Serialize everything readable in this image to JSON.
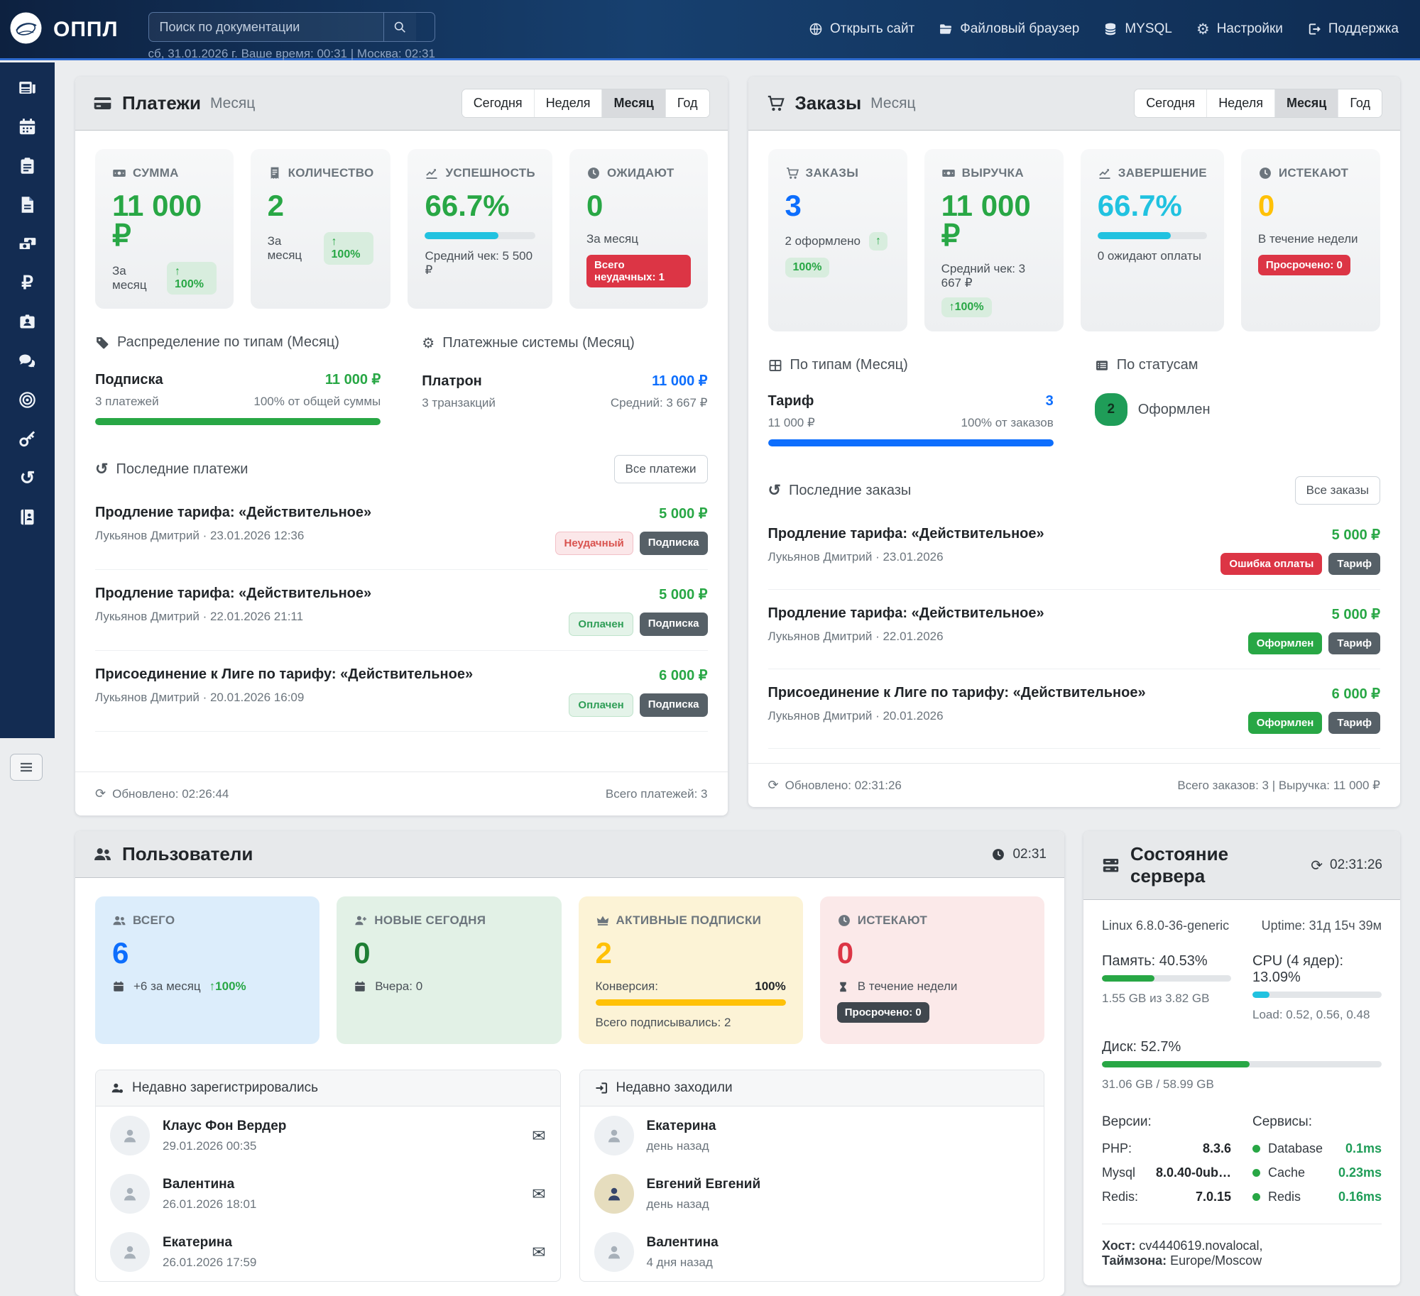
{
  "colors": {
    "accent_green": "#28a745",
    "accent_blue": "#0d6efd",
    "accent_cyan": "#21c2e0",
    "accent_amber": "#ffc107",
    "accent_red": "#dc3545",
    "navbar": "#17406f",
    "sidebar": "#132c52"
  },
  "icons": {
    "refresh": "⟳",
    "history": "↺",
    "gears": "⚙",
    "mail": "✉",
    "arrow_up": "↑",
    "ruble": "₽"
  },
  "topbar": {
    "brand": "ОППЛ",
    "search_placeholder": "Поиск по документации",
    "datetime": "сб, 31.01.2026 г. Ваше время: 00:31 | Москва: 02:31",
    "nav": [
      {
        "label": "Открыть сайт"
      },
      {
        "label": "Файловый браузер"
      },
      {
        "label": "MYSQL"
      },
      {
        "label": "Настройки"
      },
      {
        "label": "Поддержка"
      }
    ]
  },
  "sidebar": {
    "icons": [
      "news",
      "calendar",
      "tasks",
      "documents",
      "transactions",
      "finance",
      "staff",
      "messages",
      "targets",
      "access",
      "history",
      "directory"
    ]
  },
  "tabs": {
    "today": "Сегодня",
    "week": "Неделя",
    "month": "Месяц",
    "year": "Год"
  },
  "payments": {
    "title": "Платежи",
    "subtitle": "Месяц",
    "stats": [
      {
        "label": "СУММА",
        "value": "11 000 ₽",
        "foot": "За месяц",
        "badge": "↑ 100%"
      },
      {
        "label": "КОЛИЧЕСТВО",
        "value": "2",
        "foot": "За месяц",
        "badge": "↑ 100%"
      },
      {
        "label": "УСПЕШНОСТЬ",
        "value": "66.7%",
        "progress": 66.7,
        "foot": "Средний чек: 5 500 ₽"
      },
      {
        "label": "ОЖИДАЮТ",
        "value": "0",
        "foot": "За месяц",
        "alert": "Всего неудачных: 1"
      }
    ],
    "types": {
      "heading": "Распределение по типам (Месяц)",
      "name": "Подписка",
      "amount": "11 000 ₽",
      "count": "3 платежей",
      "share": "100% от общей суммы",
      "progress": 100
    },
    "systems": {
      "heading": "Платежные системы (Месяц)",
      "name": "Платрон",
      "amount": "11 000 ₽",
      "count": "3 транзакций",
      "avg": "Средний: 3 667 ₽"
    },
    "recent_title": "Последние платежи",
    "view_all": "Все платежи",
    "recent": [
      {
        "title": "Продление тарифа: «Действительное»",
        "meta": "Лукьянов Дмитрий · 23.01.2026 12:36",
        "amount": "5 000 ₽",
        "status": "Неудачный",
        "type": "Подписка"
      },
      {
        "title": "Продление тарифа: «Действительное»",
        "meta": "Лукьянов Дмитрий · 22.01.2026 21:11",
        "amount": "5 000 ₽",
        "status": "Оплачен",
        "type": "Подписка"
      },
      {
        "title": "Присоединение к Лиге по тарифу: «Действительное»",
        "meta": "Лукьянов Дмитрий · 20.01.2026 16:09",
        "amount": "6 000 ₽",
        "status": "Оплачен",
        "type": "Подписка"
      }
    ],
    "updated": "Обновлено: 02:26:44",
    "total": "Всего платежей: 3"
  },
  "orders": {
    "title": "Заказы",
    "subtitle": "Месяц",
    "stats": [
      {
        "label": "ЗАКАЗЫ",
        "value": "3",
        "foot": "2 оформлено",
        "arrow": "↑",
        "badge": "100%"
      },
      {
        "label": "ВЫРУЧКА",
        "value": "11 000 ₽",
        "foot": "Средний чек: 3 667 ₽",
        "badge": "↑100%"
      },
      {
        "label": "ЗАВЕРШЕНИЕ",
        "value": "66.7%",
        "progress": 66.7,
        "foot": "0 ожидают оплаты"
      },
      {
        "label": "ИСТЕКАЮТ",
        "value": "0",
        "foot": "В течение недели",
        "alert": "Просрочено: 0"
      }
    ],
    "types": {
      "heading": "По типам (Месяц)",
      "name": "Тариф",
      "count": "3",
      "amount": "11 000 ₽",
      "share": "100% от заказов",
      "progress": 100
    },
    "statuses": {
      "heading": "По статусам",
      "count": "2",
      "label": "Оформлен"
    },
    "recent_title": "Последние заказы",
    "view_all": "Все заказы",
    "recent": [
      {
        "title": "Продление тарифа: «Действительное»",
        "meta": "Лукьянов Дмитрий · 23.01.2026",
        "amount": "5 000 ₽",
        "status": "Ошибка оплаты",
        "type": "Тариф"
      },
      {
        "title": "Продление тарифа: «Действительное»",
        "meta": "Лукьянов Дмитрий · 22.01.2026",
        "amount": "5 000 ₽",
        "status": "Оформлен",
        "type": "Тариф"
      },
      {
        "title": "Присоединение к Лиге по тарифу: «Действительное»",
        "meta": "Лукьянов Дмитрий · 20.01.2026",
        "amount": "6 000 ₽",
        "status": "Оформлен",
        "type": "Тариф"
      }
    ],
    "updated": "Обновлено: 02:31:26",
    "total": "Всего заказов: 3 | Выручка: 11 000 ₽"
  },
  "users": {
    "title": "Пользователи",
    "time": "02:31",
    "stats": [
      {
        "label": "ВСЕГО",
        "value": "6",
        "foot": "+6 за месяц",
        "badge": "↑100%"
      },
      {
        "label": "НОВЫЕ СЕГОДНЯ",
        "value": "0",
        "foot": "Вчера: 0"
      },
      {
        "label": "АКТИВНЫЕ ПОДПИСКИ",
        "value": "2",
        "conversion_label": "Конверсия:",
        "conversion_value": "100%",
        "progress": 100,
        "foot": "Всего подписывались: 2"
      },
      {
        "label": "ИСТЕКАЮТ",
        "value": "0",
        "foot": "В течение недели",
        "alert": "Просрочено: 0"
      }
    ],
    "registered": {
      "title": "Недавно зарегистрировались",
      "items": [
        {
          "name": "Клаус Фон Вердер",
          "date": "29.01.2026 00:35"
        },
        {
          "name": "Валентина",
          "date": "26.01.2026 18:01"
        },
        {
          "name": "Екатерина",
          "date": "26.01.2026 17:59"
        }
      ]
    },
    "visited": {
      "title": "Недавно заходили",
      "items": [
        {
          "name": "Екатерина",
          "date": "день назад"
        },
        {
          "name": "Евгений Евгений",
          "date": "день назад"
        },
        {
          "name": "Валентина",
          "date": "4 дня назад"
        }
      ]
    }
  },
  "server": {
    "title": "Состояние сервера",
    "time": "02:31:26",
    "os": "Linux 6.8.0-36-generic",
    "uptime": "Uptime: 31д 15ч 39м",
    "memory": {
      "label": "Память: 40.53%",
      "percent": 40.53,
      "detail": "1.55 GB из 3.82 GB"
    },
    "cpu": {
      "label": "CPU (4 ядер): 13.09%",
      "percent": 13.09,
      "detail": "Load: 0.52, 0.56, 0.48"
    },
    "disk": {
      "label": "Диск: 52.7%",
      "percent": 52.7,
      "detail": "31.06 GB / 58.99 GB"
    },
    "versions_title": "Версии:",
    "services_title": "Сервисы:",
    "versions": [
      {
        "name": "PHP:",
        "value": "8.3.6"
      },
      {
        "name": "Mysql",
        "value": "8.0.40-0ub…"
      },
      {
        "name": "Redis:",
        "value": "7.0.15"
      }
    ],
    "services": [
      {
        "name": "Database",
        "value": "0.1ms"
      },
      {
        "name": "Cache",
        "value": "0.23ms"
      },
      {
        "name": "Redis",
        "value": "0.16ms"
      }
    ],
    "host_label": "Хост:",
    "host_value": "cv4440619.novalocal,",
    "tz_label": "Таймзона:",
    "tz_value": "Europe/Moscow"
  }
}
